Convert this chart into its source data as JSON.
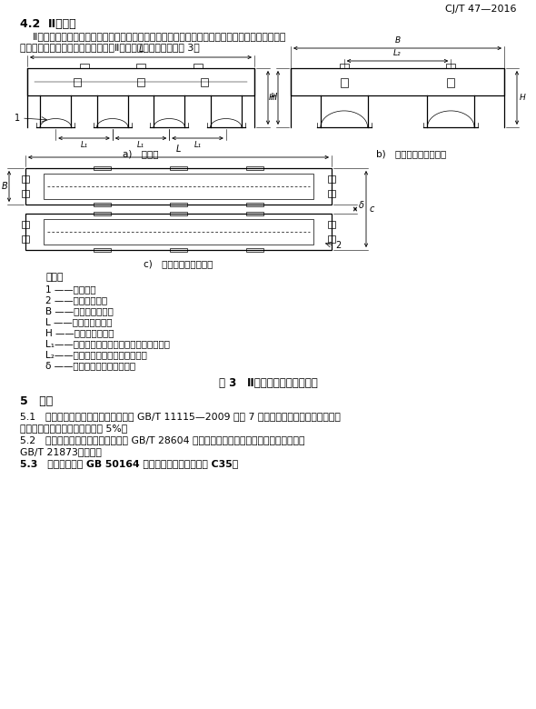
{
  "header_right": "CJ/T 47—2016",
  "section_42_title": "4.2  Ⅱ型滤砖",
  "para1_line1": "ＩＩ型滤砖为一次配水配气滤砖，适用于污水深度处理、污水再生利用等工程中的深床滤池。滤砖采",
  "para1_line1b": "    Ⅱ型滤砖为一次配水配气滤砖，适用于污水深度处理、污水再生利用等工程中的深床滤池。滤砖采",
  "para1_line2": "用高密度聚乙烯外壳，充填混凝土。Ⅱ型滤砖结构型式示意见图 3。",
  "sublabel_a": "a) 立面图",
  "sublabel_b": "b) 剪面图（两块扣合）",
  "sublabel_c": "c) 平面图（两块扣合）",
  "legend_title": "说明：",
  "legend_items": [
    "1 ——支撑脚；",
    "2 ——充填混凝土；",
    "B ——单块滤砖宽度；",
    "L ——单块滤砖长度；",
    "H ——单块滤砖高度；",
    "L₁——单块滤砖相邻的两个支撑脚中心距离；",
    "L₂——扣合后的两块滤砖中心距离；",
    "δ ——扣合后的两块滤砖间隙。"
  ],
  "fig_caption": "图 3 Ⅱ型滤砖结构型式示意图",
  "section5_title": "5 材料",
  "para51a": "5.1 滤砖所用高密度聚乙烯原料应符合 GB/T 11115—2009 中表 7 的规定。添加回用料仅限于本厂",
  "para51b": "内同类产品回用料，且应不高于 5%。",
  "para52a": "5.2 用于饮用水时橡胶密封圈应符合 GB/T 28604 的规定，用于非饮用水时橡胶密封圈应符合",
  "para52b": "GB/T 21873的规定。",
  "para53": "5.3 混凝土应符合 GB 50164 的规定，且强度不应低于 C35。",
  "bg_color": "#ffffff"
}
